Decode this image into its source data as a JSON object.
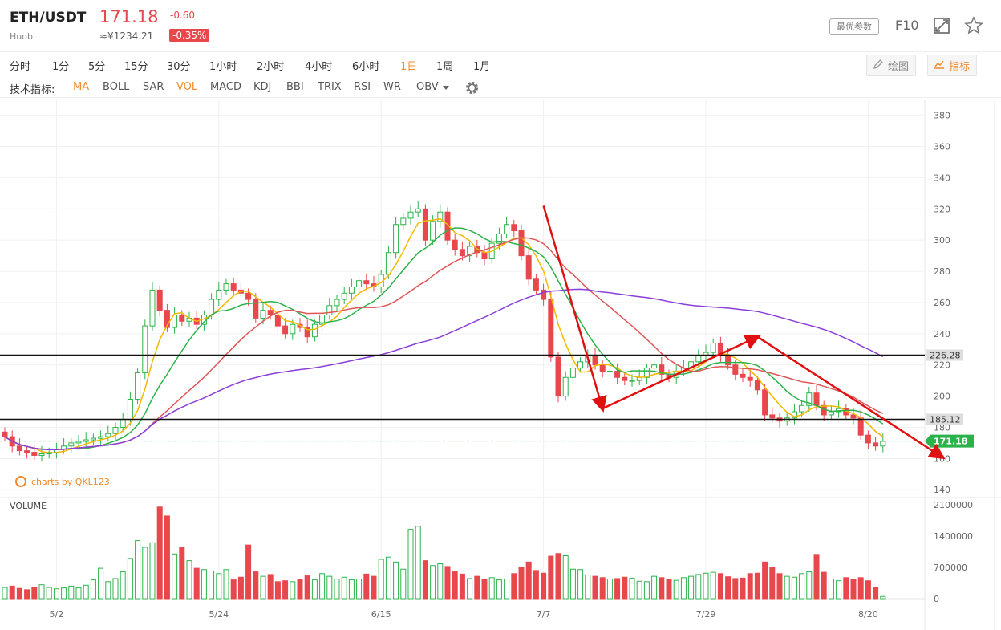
{
  "header": {
    "symbol": "ETH/USDT",
    "exchange": "Huobi",
    "price": "171.18",
    "price_cny": "≈¥1234.21",
    "change": "-0.60",
    "change_pct": "-0.35%",
    "params_button": "最优参数",
    "f10_label": "F10"
  },
  "periods": [
    "分时",
    "1分",
    "5分",
    "15分",
    "30分",
    "1小时",
    "2小时",
    "4小时",
    "6小时",
    "1日",
    "1周",
    "1月"
  ],
  "active_period": "1日",
  "tools": {
    "draw": "绘图",
    "indicator": "指标"
  },
  "indicators": {
    "label": "技术指标:",
    "items": [
      "MA",
      "BOLL",
      "SAR",
      "VOL",
      "MACD",
      "KDJ",
      "BBI",
      "TRIX",
      "RSI",
      "WR",
      "OBV"
    ],
    "active": [
      "MA",
      "VOL"
    ]
  },
  "chart_data": {
    "type": "candlestick",
    "symbol": "ETH/USDT",
    "interval": "1日",
    "watermark": "charts by QKL123",
    "volume_label": "VOLUME",
    "x_ticks": [
      "5/2",
      "5/24",
      "6/15",
      "7/7",
      "7/29",
      "8/20"
    ],
    "y_ticks": [
      140,
      160,
      180,
      200,
      220,
      240,
      260,
      280,
      300,
      320,
      340,
      360,
      380
    ],
    "ylim": [
      136,
      386
    ],
    "volume_ticks": [
      "2100000",
      "1400000",
      "700000",
      "0"
    ],
    "volume_max": 2100000,
    "horizontal_lines": [
      {
        "value": 226.28,
        "label": "226.28"
      },
      {
        "value": 185.12,
        "label": "185.12"
      }
    ],
    "last_price": {
      "value": 171.18,
      "label": "171.18"
    },
    "colors": {
      "up": "#2bb34b",
      "down": "#e8474c",
      "ma5": "#f5b800",
      "ma10": "#2bb34b",
      "ma20": "#e05555",
      "ma60": "#8a3fd8",
      "arrow": "#e01010",
      "tag": "#2bb34b"
    },
    "closes": [
      174,
      168,
      165,
      164,
      162,
      163,
      164,
      166,
      168,
      170,
      171,
      172,
      173,
      174,
      176,
      180,
      185,
      198,
      215,
      245,
      268,
      255,
      244,
      252,
      248,
      250,
      246,
      252,
      262,
      268,
      272,
      268,
      266,
      262,
      250,
      255,
      252,
      245,
      240,
      246,
      244,
      238,
      246,
      252,
      258,
      262,
      266,
      270,
      274,
      272,
      270,
      278,
      292,
      310,
      314,
      318,
      320,
      300,
      312,
      318,
      300,
      294,
      290,
      296,
      292,
      288,
      298,
      304,
      310,
      306,
      290,
      275,
      268,
      262,
      225,
      200,
      212,
      218,
      222,
      226,
      220,
      216,
      216,
      212,
      210,
      210,
      212,
      218,
      220,
      214,
      212,
      216,
      218,
      222,
      226,
      228,
      234,
      226,
      220,
      214,
      212,
      210,
      204,
      188,
      186,
      184,
      186,
      190,
      194,
      202,
      194,
      188,
      190,
      192,
      188,
      186,
      175,
      170,
      168,
      171
    ],
    "volumes": [
      250000,
      280000,
      230000,
      200000,
      260000,
      310000,
      250000,
      220000,
      240000,
      280000,
      240000,
      300000,
      420000,
      680000,
      380000,
      450000,
      600000,
      900000,
      1300000,
      1150000,
      1250000,
      2050000,
      1850000,
      1000000,
      1150000,
      850000,
      680000,
      650000,
      620000,
      560000,
      650000,
      420000,
      480000,
      1200000,
      600000,
      500000,
      540000,
      380000,
      400000,
      380000,
      430000,
      510000,
      420000,
      560000,
      500000,
      440000,
      480000,
      420000,
      440000,
      550000,
      500000,
      880000,
      930000,
      820000,
      660000,
      1550000,
      1620000,
      850000,
      740000,
      780000,
      720000,
      600000,
      550000,
      450000,
      500000,
      440000,
      470000,
      420000,
      440000,
      560000,
      700000,
      820000,
      630000,
      570000,
      950000,
      1010000,
      960000,
      660000,
      650000,
      530000,
      500000,
      470000,
      440000,
      450000,
      480000,
      460000,
      390000,
      380000,
      500000,
      470000,
      430000,
      410000,
      470000,
      500000,
      540000,
      570000,
      590000,
      560000,
      490000,
      450000,
      460000,
      560000,
      570000,
      820000,
      700000,
      560000,
      500000,
      480000,
      560000,
      600000,
      990000,
      590000,
      440000,
      400000,
      470000,
      440000,
      470000,
      400000,
      260000,
      50000
    ],
    "drawings": [
      {
        "type": "arrow",
        "from": [
          "7/7",
          322
        ],
        "to": [
          "7/15",
          192
        ]
      },
      {
        "type": "arrow",
        "from": [
          "7/15",
          192
        ],
        "to": [
          "8/5",
          238
        ]
      },
      {
        "type": "arrow",
        "from": [
          "8/5",
          238
        ],
        "to": [
          "8/30",
          161
        ]
      }
    ]
  }
}
